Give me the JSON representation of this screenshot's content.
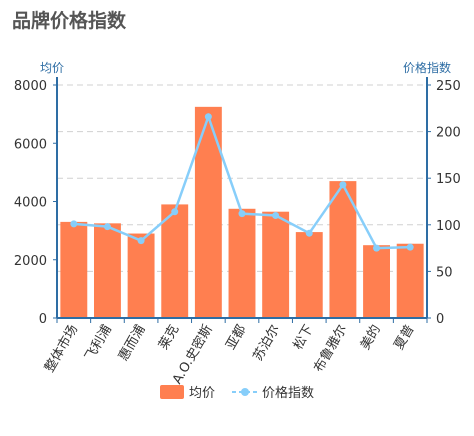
{
  "chart_data": {
    "type": "bar",
    "title": "品牌价格指数",
    "categories": [
      "整体市场",
      "飞利浦",
      "惠而浦",
      "莱克",
      "A.O.史密斯",
      "亚都",
      "苏泊尔",
      "松下",
      "布鲁雅尔",
      "美的",
      "夏普"
    ],
    "y_left_label": "均价",
    "y_right_label": "价格指数",
    "y_left_ticks": [
      "0",
      "2000",
      "4000",
      "6000",
      "8000"
    ],
    "y_right_ticks": [
      "0",
      "50",
      "100",
      "150",
      "200",
      "250"
    ],
    "y_left_range": [
      0,
      8000
    ],
    "y_right_range": [
      0,
      250
    ],
    "grid": true,
    "legend_position": "bottom",
    "series": [
      {
        "name": "均价",
        "type": "bar",
        "axis": "left",
        "values": [
          3300,
          3250,
          2900,
          3900,
          7250,
          3750,
          3650,
          2950,
          4700,
          2500,
          2550
        ]
      },
      {
        "name": "价格指数",
        "type": "line",
        "axis": "right",
        "values": [
          101,
          98,
          83,
          114,
          216,
          112,
          110,
          91,
          143,
          75,
          76
        ]
      }
    ],
    "colors": {
      "bar": "#ff7f50",
      "line": "#87cefa",
      "axis": "#2e6da4",
      "grid": "#d0d0d0"
    }
  }
}
